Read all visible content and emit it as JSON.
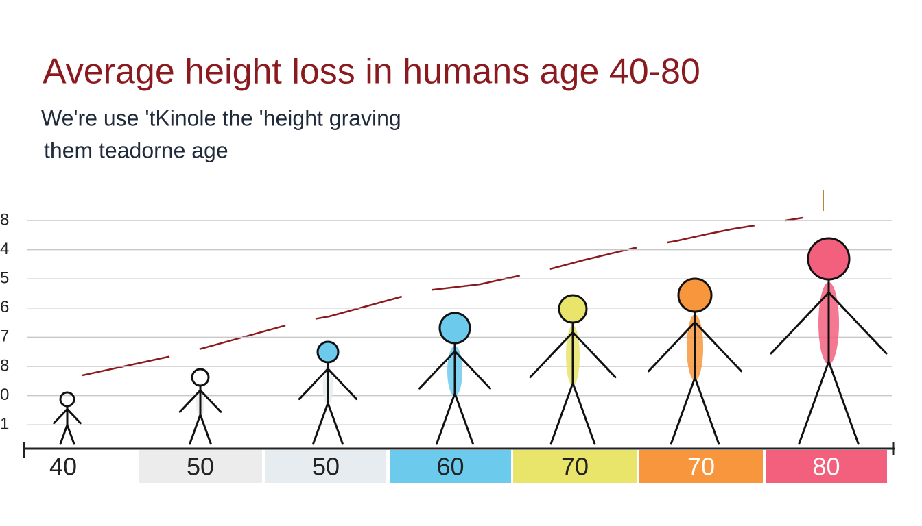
{
  "title": "Average height loss in humans age 40-80",
  "subtitle": [
    "We're use 'tKinole the 'height graving",
    "them teadorne age"
  ],
  "y_labels": [
    "8",
    "4",
    "5",
    "6",
    "7",
    "8",
    "0",
    "1"
  ],
  "x_labels": [
    {
      "label": "40",
      "color": "#ffffff"
    },
    {
      "label": "50",
      "color": "#ececec"
    },
    {
      "label": "50",
      "color": "#e6ecf0"
    },
    {
      "label": "60",
      "color": "#6ccbec"
    },
    {
      "label": "70",
      "color": "#e9e46a"
    },
    {
      "label": "70",
      "color": "#f7963c"
    },
    {
      "label": "80",
      "color": "#f2607e"
    }
  ]
}
